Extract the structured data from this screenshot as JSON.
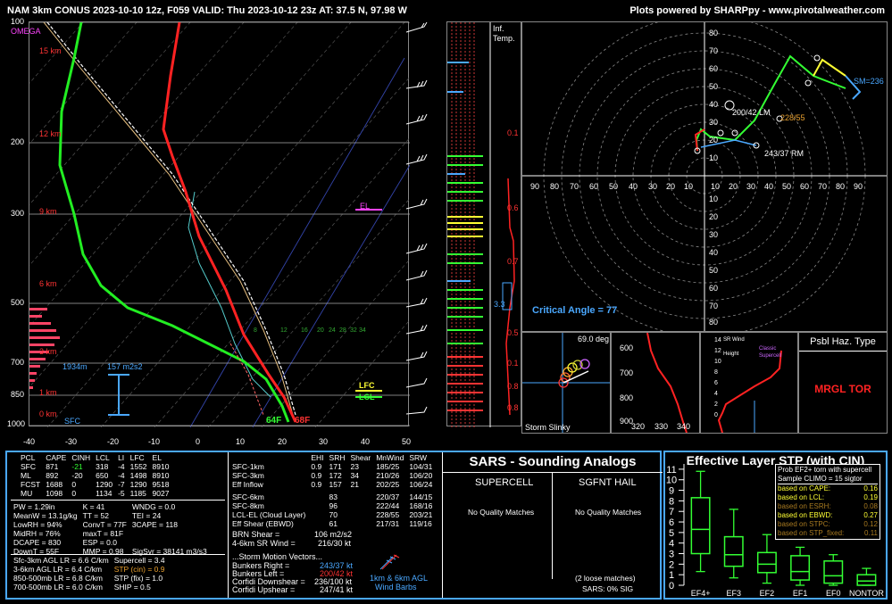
{
  "header": {
    "title": "NAM 3km CONUS 2023-10-10 12z, F059  VALID: Thu 2023-10-12 23z  AT: 37.5 N, 97.98 W",
    "credit": "Plots powered by SHARPpy - www.pivotalweather.com"
  },
  "skewt": {
    "omega_label": "OMEGA",
    "pressure_ticks": [
      "100",
      "200",
      "300",
      "500",
      "700",
      "850",
      "1000"
    ],
    "height_labels": [
      "15 km",
      "12 km",
      "9 km",
      "6 km",
      "3 km",
      "1 km",
      "0 km"
    ],
    "temp_ticks": [
      "-40",
      "-30",
      "-20",
      "-10",
      "0",
      "10",
      "20",
      "30",
      "40",
      "50"
    ],
    "el_label": "EL",
    "lfc_label": "LFC",
    "lcl_label": "LCL",
    "sfc_label": "SFC",
    "dcape_height": "1934m",
    "srh_label": "157 m2s2",
    "sfc_temp": "68F",
    "sfc_dewp": "64F",
    "isotherm_labels": [
      "8",
      "12",
      "16",
      "20",
      "24",
      "28",
      "32",
      "34"
    ]
  },
  "inflow": {
    "label1": "Inf.",
    "label2": "Temp.",
    "values": [
      "0.1",
      "0.6",
      "0.7",
      "3.3",
      "0.5",
      "0.1",
      "0.8",
      "0.8"
    ]
  },
  "hodograph": {
    "speed_ticks": [
      "80",
      "70",
      "60",
      "50",
      "40",
      "30",
      "20",
      "10"
    ],
    "x_ticks_left": [
      "90",
      "80",
      "70",
      "60",
      "50",
      "40",
      "30",
      "20",
      "10"
    ],
    "x_ticks_right": [
      "10",
      "20",
      "30",
      "40",
      "50",
      "60",
      "70",
      "80",
      "90"
    ],
    "y_ticks_neg": [
      "10",
      "20",
      "30",
      "40",
      "50",
      "60",
      "70",
      "80"
    ],
    "lm_label": "200/42 LM",
    "rm_label": "243/37 RM",
    "mean_label": "228/55",
    "sm_label": "SM=236",
    "critical_angle": "Critical Angle = 77"
  },
  "storm_slinky": {
    "angle": "69.0 deg",
    "label": "Storm Slinky"
  },
  "theta_panel": {
    "y_ticks": [
      "600",
      "700",
      "800",
      "900"
    ],
    "x_ticks": [
      "320",
      "330",
      "340"
    ]
  },
  "wind_panel": {
    "y_ticks": [
      "14",
      "12",
      "10",
      "8",
      "6",
      "4",
      "2",
      "0"
    ],
    "title1": "SR Wind",
    "title2": "Height",
    "legend1": "Classic",
    "legend2": "Supercell"
  },
  "hazard": {
    "title": "Psbl Haz. Type",
    "value": "MRGL TOR"
  },
  "parcel_table": {
    "headers": [
      "PCL",
      "CAPE",
      "CINH",
      "LCL",
      "LI",
      "LFC",
      "EL"
    ],
    "rows": [
      [
        "SFC",
        "871",
        "-21",
        "318",
        "-4",
        "1552",
        "8910"
      ],
      [
        "ML",
        "892",
        "-20",
        "650",
        "-4",
        "1498",
        "8910"
      ],
      [
        "FCST",
        "1688",
        "0",
        "1290",
        "-7",
        "1290",
        "9518"
      ],
      [
        "MU",
        "1098",
        "0",
        "1134",
        "-5",
        "1185",
        "9027"
      ]
    ]
  },
  "indices": [
    [
      "PW = 1.29in",
      "K = 41",
      "WNDG = 0.0"
    ],
    [
      "MeanW = 13.1g/kg",
      "TT = 52",
      "TEI = 24"
    ],
    [
      "LowRH = 94%",
      "ConvT = 77F",
      "3CAPE = 118"
    ],
    [
      "MidRH = 76%",
      "maxT = 81F",
      ""
    ],
    [
      "DCAPE = 830",
      "ESP = 0.0",
      ""
    ],
    [
      "DownT = 55F",
      "MMP = 0.98",
      "SigSvr = 38141 m3/s3"
    ]
  ],
  "lapse": {
    "left": [
      "Sfc-3km AGL LR = 6.6 C/km",
      "3-6km AGL LR = 6.4 C/km",
      "850-500mb LR = 6.8 C/km",
      "700-500mb LR = 6.0 C/km"
    ],
    "right": [
      "Supercell = 3.4",
      "STP (cin) = 0.9",
      "STP (fix) = 1.0",
      "SHIP = 0.5"
    ]
  },
  "kinematic_table": {
    "headers": [
      "",
      "EHI",
      "SRH",
      "Shear",
      "MnWind",
      "SRW"
    ],
    "rows": [
      [
        "SFC-1km",
        "0.9",
        "171",
        "23",
        "185/25",
        "104/31"
      ],
      [
        "SFC-3km",
        "0.9",
        "172",
        "34",
        "210/26",
        "106/20"
      ],
      [
        "Eff Inflow",
        "0.9",
        "157",
        "21",
        "202/25",
        "106/24"
      ],
      [
        "",
        "",
        "",
        "",
        "",
        ""
      ],
      [
        "SFC-6km",
        "",
        "83",
        "",
        "220/37",
        "144/15"
      ],
      [
        "SFC-8km",
        "",
        "96",
        "",
        "222/44",
        "168/16"
      ],
      [
        "LCL-EL (Cloud Layer)",
        "",
        "70",
        "",
        "228/55",
        "203/21"
      ],
      [
        "Eff Shear (EBWD)",
        "",
        "61",
        "",
        "217/31",
        "119/16"
      ]
    ],
    "brn": "BRN Shear =",
    "brn_val": "106 m2/s2",
    "srwind": "4-6km SR Wind =",
    "srwind_val": "216/30 kt",
    "sm_title": "...Storm Motion Vectors...",
    "sm_rows": [
      [
        "Bunkers Right =",
        "243/37 kt"
      ],
      [
        "Bunkers Left =",
        "200/42 kt"
      ],
      [
        "Corfidi Downshear =",
        "236/100 kt"
      ],
      [
        "Corfidi Upshear =",
        "247/41 kt"
      ]
    ],
    "barb_label1": "1km & 6km AGL",
    "barb_label2": "Wind Barbs"
  },
  "sars": {
    "title": "SARS - Sounding Analogs",
    "supercell": "SUPERCELL",
    "hail": "SGFNT HAIL",
    "supercell_result": "No Quality Matches",
    "hail_result": "No Quality Matches",
    "loose": "(2 loose matches)",
    "sig": "SARS: 0% SIG"
  },
  "stp_panel": {
    "title": "Effective Layer STP (with CIN)",
    "note_title": "Prob EF2+ torn with supercell",
    "note_sub": "Sample CLIMO = 15 sigtor",
    "notes": [
      [
        "based on CAPE:",
        "0.16"
      ],
      [
        "based on LCL:",
        "0.19"
      ],
      [
        "based on ESRH:",
        "0.08"
      ],
      [
        "based on EBWD:",
        "0.27"
      ],
      [
        "based on STPC:",
        "0.12"
      ],
      [
        "based on STP_fixed:",
        "0.11"
      ]
    ],
    "y_ticks": [
      "11",
      "10",
      "9",
      "8",
      "7",
      "6",
      "5",
      "4",
      "3",
      "2",
      "1",
      "0"
    ]
  },
  "chart_data": {
    "type": "box",
    "title": "Effective Layer STP (with CIN)",
    "categories": [
      "EF4+",
      "EF3",
      "EF2",
      "EF1",
      "EF0",
      "NONTOR"
    ],
    "boxes": [
      {
        "whisker_low": 1.3,
        "q1": 3.0,
        "median": 5.3,
        "q3": 8.3,
        "whisker_high": 10.8
      },
      {
        "whisker_low": 0.7,
        "q1": 1.8,
        "median": 2.9,
        "q3": 4.6,
        "whisker_high": 7.2
      },
      {
        "whisker_low": 0.2,
        "q1": 1.2,
        "median": 2.0,
        "q3": 3.1,
        "whisker_high": 4.8
      },
      {
        "whisker_low": 0.0,
        "q1": 0.5,
        "median": 1.3,
        "q3": 2.8,
        "whisker_high": 3.6
      },
      {
        "whisker_low": 0.0,
        "q1": 0.2,
        "median": 0.9,
        "q3": 2.3,
        "whisker_high": 2.9
      },
      {
        "whisker_low": 0.0,
        "q1": 0.0,
        "median": 0.4,
        "q3": 1.0,
        "whisker_high": 1.6
      }
    ],
    "ylim": [
      0,
      11.5
    ],
    "current_stp": 0.9
  },
  "colors": {
    "temp": "#ff2222",
    "dewp": "#22ee22",
    "accent": "#4aa8ff",
    "green_box": "#33ff33",
    "yellow": "#ffff33"
  }
}
